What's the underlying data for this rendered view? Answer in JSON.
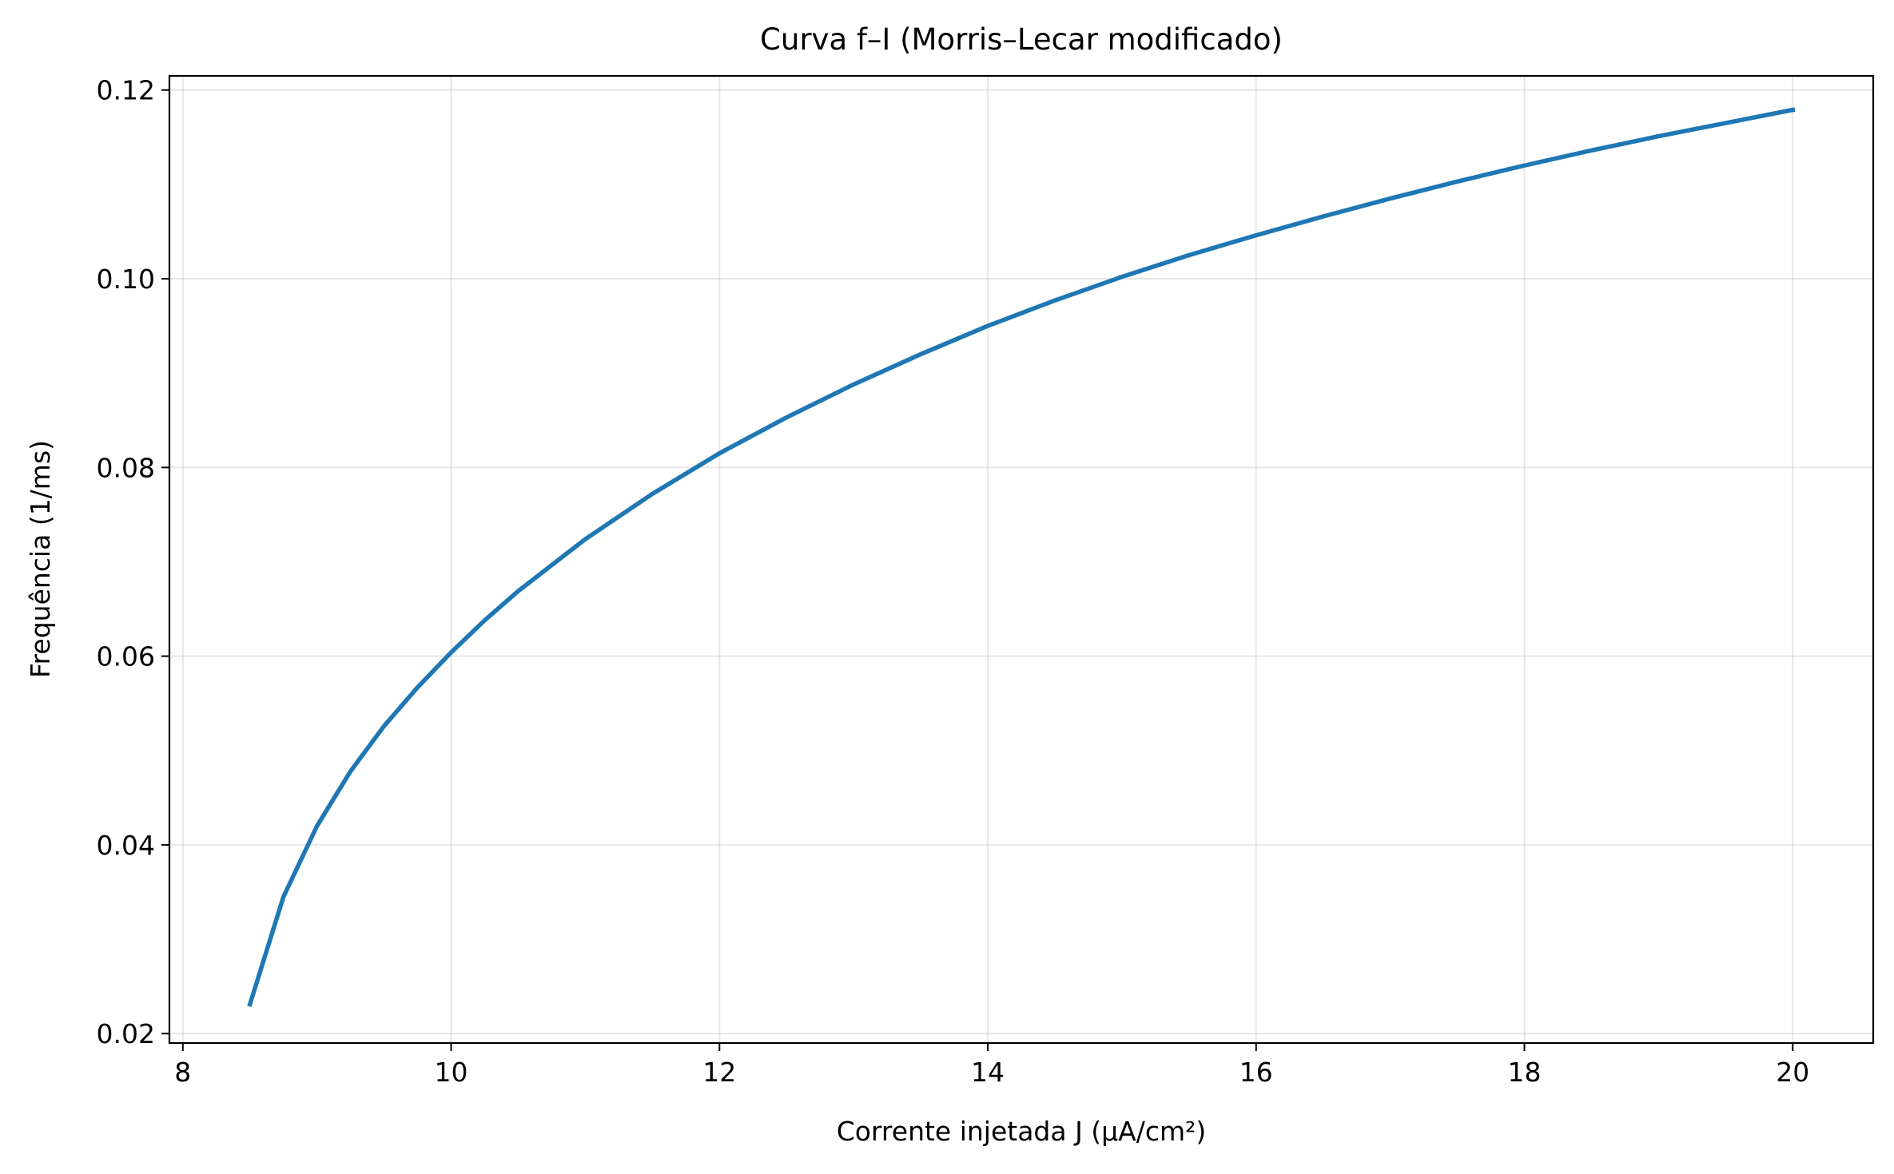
{
  "chart_data": {
    "type": "line",
    "title": "Curva f–I (Morris–Lecar modificado)",
    "xlabel": "Corrente injetada J (µA/cm²)",
    "ylabel": "Frequência (1/ms)",
    "xlim": [
      7.9,
      20.6
    ],
    "ylim": [
      0.019,
      0.1215
    ],
    "xticks": [
      8,
      10,
      12,
      14,
      16,
      18,
      20
    ],
    "xtick_labels": [
      "8",
      "10",
      "12",
      "14",
      "16",
      "18",
      "20"
    ],
    "yticks": [
      0.02,
      0.04,
      0.06,
      0.08,
      0.1,
      0.12
    ],
    "ytick_labels": [
      "0.02",
      "0.04",
      "0.06",
      "0.08",
      "0.10",
      "0.12"
    ],
    "grid": true,
    "line_color": "#1f77b4",
    "series": [
      {
        "x": [
          8.5,
          8.75,
          9.0,
          9.25,
          9.5,
          9.75,
          10.0,
          10.25,
          10.5,
          11.0,
          11.5,
          12.0,
          12.5,
          13.0,
          13.5,
          14.0,
          14.5,
          15.0,
          15.5,
          16.0,
          16.5,
          17.0,
          17.5,
          18.0,
          18.5,
          19.0,
          19.5,
          20.0
        ],
        "y": [
          0.0231,
          0.0345,
          0.042,
          0.0478,
          0.0526,
          0.0567,
          0.0604,
          0.0638,
          0.0669,
          0.0724,
          0.0772,
          0.0815,
          0.0853,
          0.0888,
          0.092,
          0.095,
          0.0977,
          0.1002,
          0.1025,
          0.1046,
          0.1066,
          0.1085,
          0.1103,
          0.112,
          0.1136,
          0.1151,
          0.1165,
          0.1179
        ]
      }
    ]
  }
}
